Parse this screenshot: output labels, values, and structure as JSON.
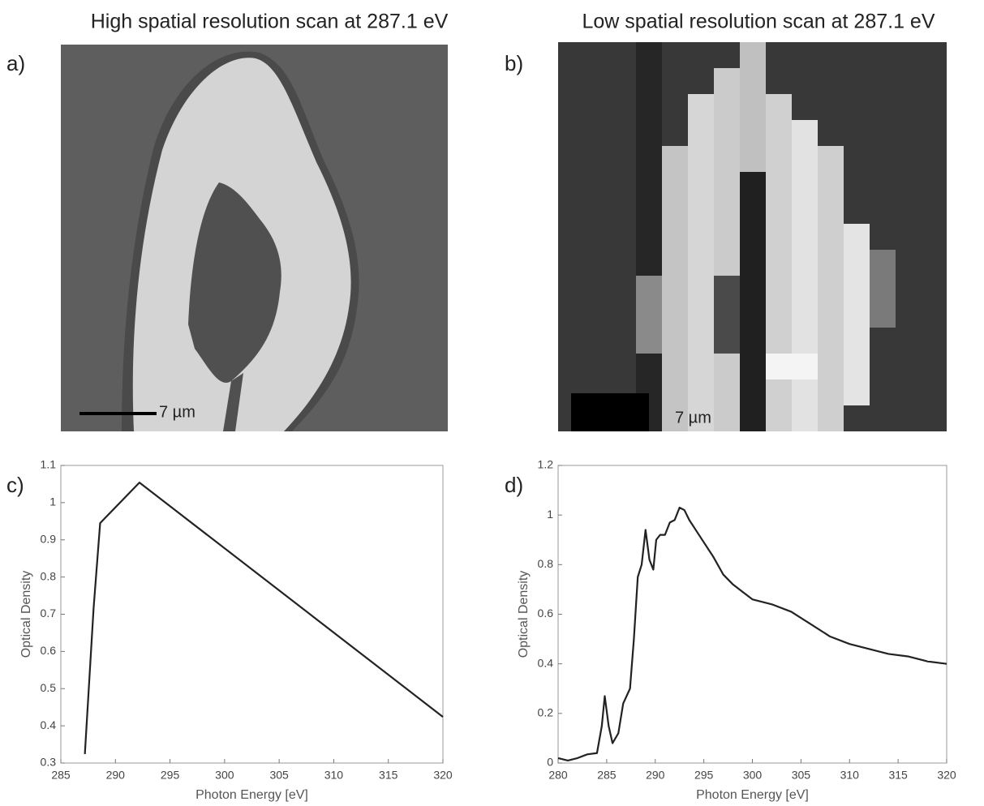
{
  "panels": [
    {
      "label": "a)",
      "title": "High spatial resolution scan at 287.1 eV",
      "scale_bar": "7 µm"
    },
    {
      "label": "b)",
      "title": "Low spatial resolution scan at 287.1 eV",
      "scale_bar": "7 µm"
    }
  ],
  "chart_data": [
    {
      "type": "line",
      "panel_label": "c)",
      "xlabel": "Photon Energy [eV]",
      "ylabel": "Optical Density",
      "xlim": [
        285,
        320
      ],
      "xticks": [
        285,
        290,
        295,
        300,
        305,
        310,
        315,
        320
      ],
      "ylim": [
        0.3,
        1.1
      ],
      "yticks": [
        0.3,
        0.4,
        0.5,
        0.6,
        0.7,
        0.8,
        0.9,
        1,
        1.1
      ],
      "color": "#222222",
      "x": [
        287.2,
        288.0,
        288.6,
        292.2,
        320
      ],
      "values": [
        0.324,
        0.716,
        0.945,
        1.054,
        0.424
      ]
    },
    {
      "type": "line",
      "panel_label": "d)",
      "xlabel": "Photon Energy [eV]",
      "ylabel": "Optical Density",
      "xlim": [
        280,
        320
      ],
      "xticks": [
        280,
        285,
        290,
        295,
        300,
        305,
        310,
        315,
        320
      ],
      "ylim": [
        0,
        1.2
      ],
      "yticks": [
        0,
        0.2,
        0.4,
        0.6,
        0.8,
        1,
        1.2
      ],
      "color": "#222222",
      "x": [
        280,
        281,
        282,
        283,
        284,
        284.5,
        284.8,
        285.2,
        285.6,
        286.2,
        286.7,
        287.4,
        287.8,
        288.2,
        288.6,
        289,
        289.4,
        289.8,
        290.1,
        290.5,
        291,
        291.5,
        292,
        292.5,
        293,
        293.5,
        294,
        295,
        296,
        297,
        298,
        299,
        300,
        302,
        304,
        306,
        308,
        310,
        312,
        314,
        316,
        318,
        320
      ],
      "values": [
        0.02,
        0.01,
        0.02,
        0.035,
        0.04,
        0.15,
        0.27,
        0.15,
        0.08,
        0.12,
        0.24,
        0.3,
        0.5,
        0.75,
        0.8,
        0.94,
        0.82,
        0.78,
        0.9,
        0.92,
        0.92,
        0.97,
        0.98,
        1.03,
        1.02,
        0.98,
        0.95,
        0.89,
        0.83,
        0.76,
        0.72,
        0.69,
        0.66,
        0.64,
        0.61,
        0.56,
        0.51,
        0.48,
        0.46,
        0.44,
        0.43,
        0.41,
        0.4
      ]
    }
  ]
}
